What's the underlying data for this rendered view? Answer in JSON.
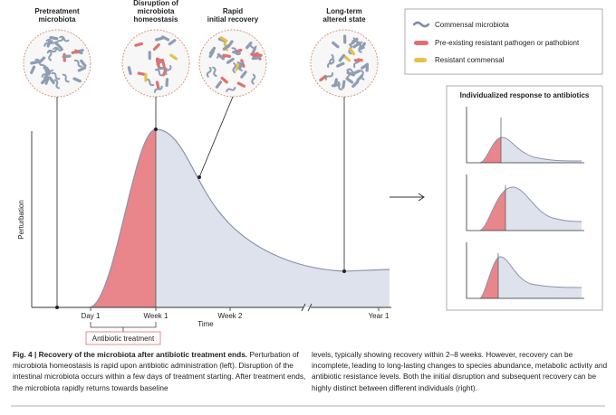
{
  "stages": [
    "Pretreatment microbiota",
    "Disruption of microbiota homeostasis",
    "Rapid initial recovery",
    "Long-term altered state"
  ],
  "legend": [
    "Commensal microbiota",
    "Pre-existing resistant pathogen or pathobiont",
    "Resistant commensal"
  ],
  "axes": {
    "y_label": "Perturbation",
    "x_label": "Time",
    "ticks": [
      "Day 1",
      "Week 1",
      "Week 2",
      "Year 1"
    ],
    "treatment": "Antibiotic treatment"
  },
  "panel": {
    "title": "Individualized response to antibiotics"
  },
  "caption": {
    "label": "Fig. 4 | Recovery of the microbiota after antibiotic treatment ends.",
    "left": "Perturbation of microbiota homeostasis is rapid upon antibiotic administration (left). Disruption of the intestinal microbiota occurs within a few days of treatment starting. After treatment ends, the microbiota rapidly returns towards baseline",
    "right": "levels, typically showing recovery within 2–8 weeks. However, recovery can be incomplete, leading to long-lasting changes to species abundance, metabolic activity and antibiotic resistance levels. Both the initial disruption and subsequent recovery can be highly distinct between different individuals (right)."
  }
}
